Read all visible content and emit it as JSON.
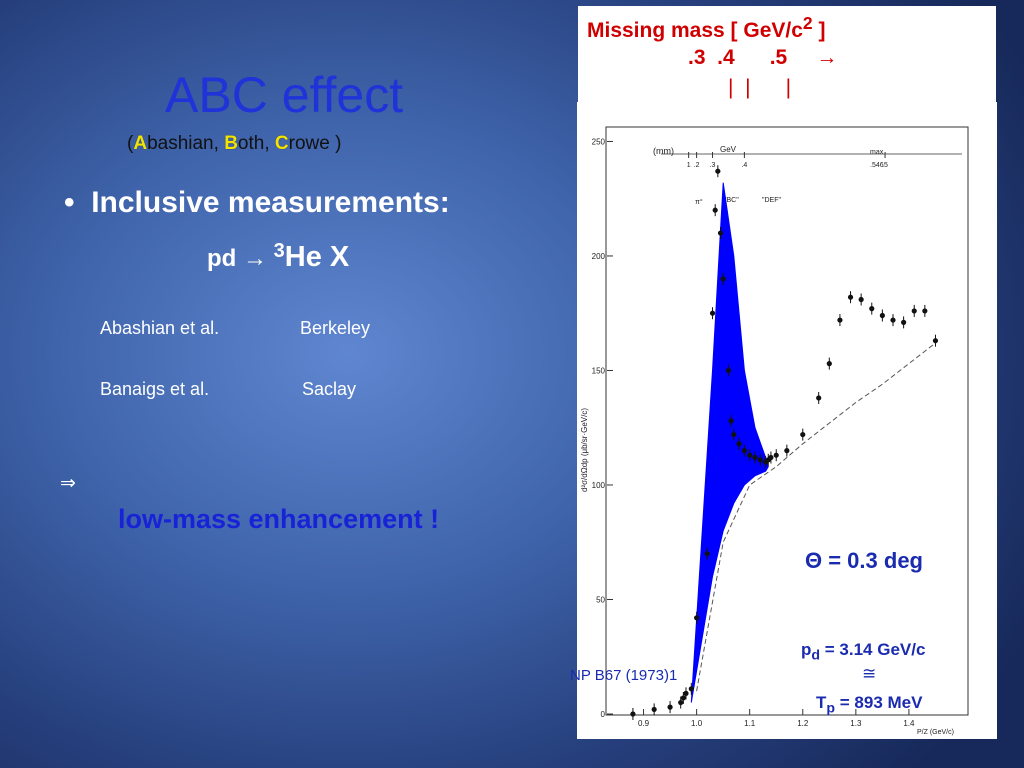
{
  "slide": {
    "title": "ABC effect",
    "subtitle": {
      "open": "(",
      "a": "A",
      "a_rest": "bashian, ",
      "b": "B",
      "b_rest": "oth, ",
      "c": "C",
      "c_rest": "rowe )"
    },
    "bullet": "Inclusive measurements:",
    "reaction": {
      "pre": "pd → ",
      "sup": "3",
      "post": "He X"
    },
    "refs": [
      {
        "author": "Abashian et al.",
        "lab": "Berkeley"
      },
      {
        "author": "Banaigs et al.",
        "lab": "Saclay"
      }
    ],
    "implies": "⇒",
    "conclusion": "low-mass enhancement !"
  },
  "missing_mass": {
    "title": "Missing mass  [ GeV/c",
    "sup": "2",
    "close": " ]",
    "ticks": ".3  .4      .5     →",
    "marks": "|  |      |"
  },
  "figure": {
    "theta": "Θ = 0.3 deg",
    "pd_pre": "p",
    "pd_sub": "d",
    "pd_post": " = 3.14 GeV/c",
    "cong": "≅",
    "tp_pre": "T",
    "tp_sub": "p",
    "tp_post": " = 893 MeV",
    "citation": "NP B67 (1973)1",
    "mm_header": "(mm)",
    "gev_label": "GeV",
    "max_label": "max",
    "max_val": ".546",
    "peaks": [
      "π°",
      "\"BC\"",
      "\"DEF\""
    ],
    "yaxis_label": "d²σ/dΩdp (μb/sr·GeV/c)",
    "xaxis_label": "P/Z (GeV/c)",
    "colors": {
      "enhancement": "#0000ff",
      "text": "#1a2bb0",
      "mm": "#d00000"
    }
  },
  "chart_data": {
    "type": "scatter",
    "xlabel": "P/Z (GeV/c)",
    "ylabel": "d²σ/dΩdp",
    "xlim": [
      0.85,
      1.5
    ],
    "ylim": [
      0,
      255
    ],
    "xticks": [
      "0.9",
      "1.0",
      "1.1",
      "1.2",
      "1.3",
      "1.4"
    ],
    "xtick_values": [
      0.9,
      1.0,
      1.1,
      1.2,
      1.3,
      1.4
    ],
    "yticks": [
      "0",
      "50",
      "100",
      "150",
      "200",
      "250"
    ],
    "ytick_values": [
      0,
      50,
      100,
      150,
      200,
      250
    ],
    "top_ticks": [
      "1",
      ".2",
      ".3",
      ".4",
      ".5"
    ],
    "top_tick_values": [
      0.985,
      1.0,
      1.03,
      1.09,
      1.355
    ],
    "data": {
      "x": [
        0.88,
        0.92,
        0.95,
        0.97,
        0.975,
        0.98,
        0.99,
        1.0,
        1.02,
        1.03,
        1.035,
        1.04,
        1.045,
        1.05,
        1.06,
        1.065,
        1.07,
        1.08,
        1.09,
        1.1,
        1.11,
        1.12,
        1.13,
        1.135,
        1.14,
        1.15,
        1.17,
        1.2,
        1.23,
        1.25,
        1.27,
        1.29,
        1.31,
        1.33,
        1.35,
        1.37,
        1.39,
        1.41,
        1.43,
        1.45
      ],
      "y": [
        0,
        2,
        3,
        5,
        7,
        9,
        11,
        42,
        70,
        175,
        220,
        237,
        210,
        190,
        150,
        128,
        122,
        118,
        115,
        113,
        112,
        111,
        110,
        111,
        112,
        113,
        115,
        122,
        138,
        153,
        172,
        182,
        181,
        177,
        174,
        172,
        171,
        176,
        176,
        163
      ]
    },
    "background_curve": {
      "x": [
        1.0,
        1.05,
        1.1,
        1.15,
        1.2,
        1.25,
        1.3,
        1.35,
        1.4,
        1.45
      ],
      "y": [
        10,
        75,
        100,
        108,
        118,
        127,
        136,
        144,
        153,
        162
      ]
    },
    "enhancement_band": {
      "x": [
        0.99,
        1.03,
        1.05,
        1.07,
        1.09,
        1.11,
        1.13,
        1.135
      ],
      "upper": [
        5,
        150,
        232,
        200,
        150,
        125,
        112,
        108
      ],
      "lower": [
        5,
        60,
        80,
        92,
        100,
        104,
        106,
        108
      ]
    }
  }
}
